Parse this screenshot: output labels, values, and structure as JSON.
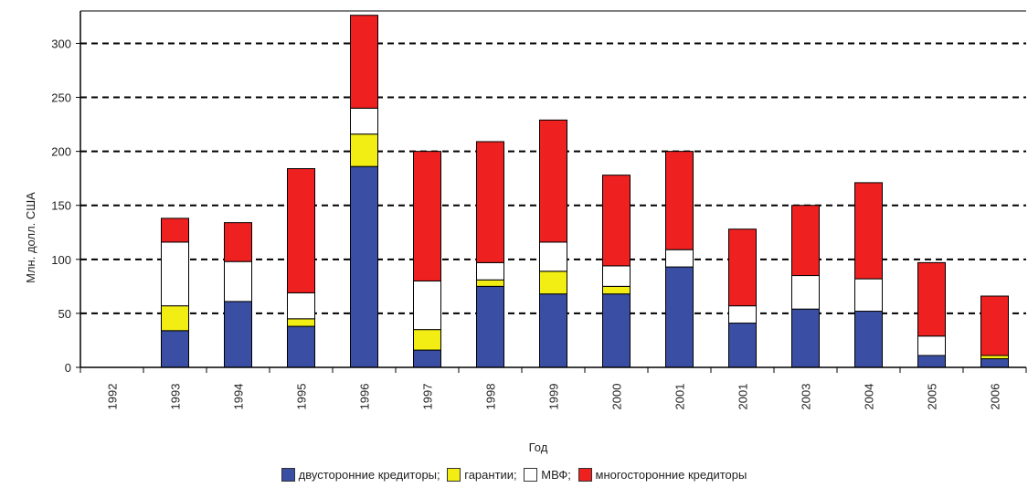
{
  "chart_data": {
    "type": "bar",
    "stacked": true,
    "ylabel": "Млн. долл. США",
    "xlabel": "Год",
    "ylim": [
      0,
      330
    ],
    "yticks": [
      0,
      50,
      100,
      150,
      200,
      250,
      300
    ],
    "grid": "horizontal-dashed",
    "legend_position": "bottom",
    "categories": [
      "1992",
      "1993",
      "1994",
      "1995",
      "1996",
      "1997",
      "1998",
      "1999",
      "2000",
      "2001",
      "2001",
      "2003",
      "2004",
      "2005",
      "2006"
    ],
    "series": [
      {
        "name": "двусторонние кредиторы",
        "color": "#3a4fa3",
        "values": [
          0,
          34,
          61,
          38,
          186,
          16,
          75,
          68,
          68,
          93,
          41,
          54,
          52,
          11,
          8
        ]
      },
      {
        "name": "гарантии",
        "color": "#f2ee14",
        "values": [
          0,
          23,
          0,
          7,
          30,
          19,
          6,
          21,
          7,
          0,
          0,
          0,
          0,
          0,
          3
        ]
      },
      {
        "name": "МВФ",
        "color": "#ffffff",
        "values": [
          0,
          59,
          37,
          24,
          24,
          45,
          16,
          27,
          19,
          16,
          16,
          31,
          30,
          18,
          0
        ]
      },
      {
        "name": "многосторонние кредиторы",
        "color": "#ee2020",
        "values": [
          0,
          22,
          36,
          115,
          86,
          120,
          112,
          113,
          84,
          91,
          71,
          65,
          89,
          68,
          55
        ]
      }
    ]
  },
  "legend": {
    "items": [
      {
        "label": "двусторонние кредиторы;",
        "color": "#3a4fa3"
      },
      {
        "label": "гарантии;",
        "color": "#f2ee14"
      },
      {
        "label": "МВФ;",
        "color": "#ffffff"
      },
      {
        "label": "многосторонние кредиторы",
        "color": "#ee2020"
      }
    ]
  }
}
